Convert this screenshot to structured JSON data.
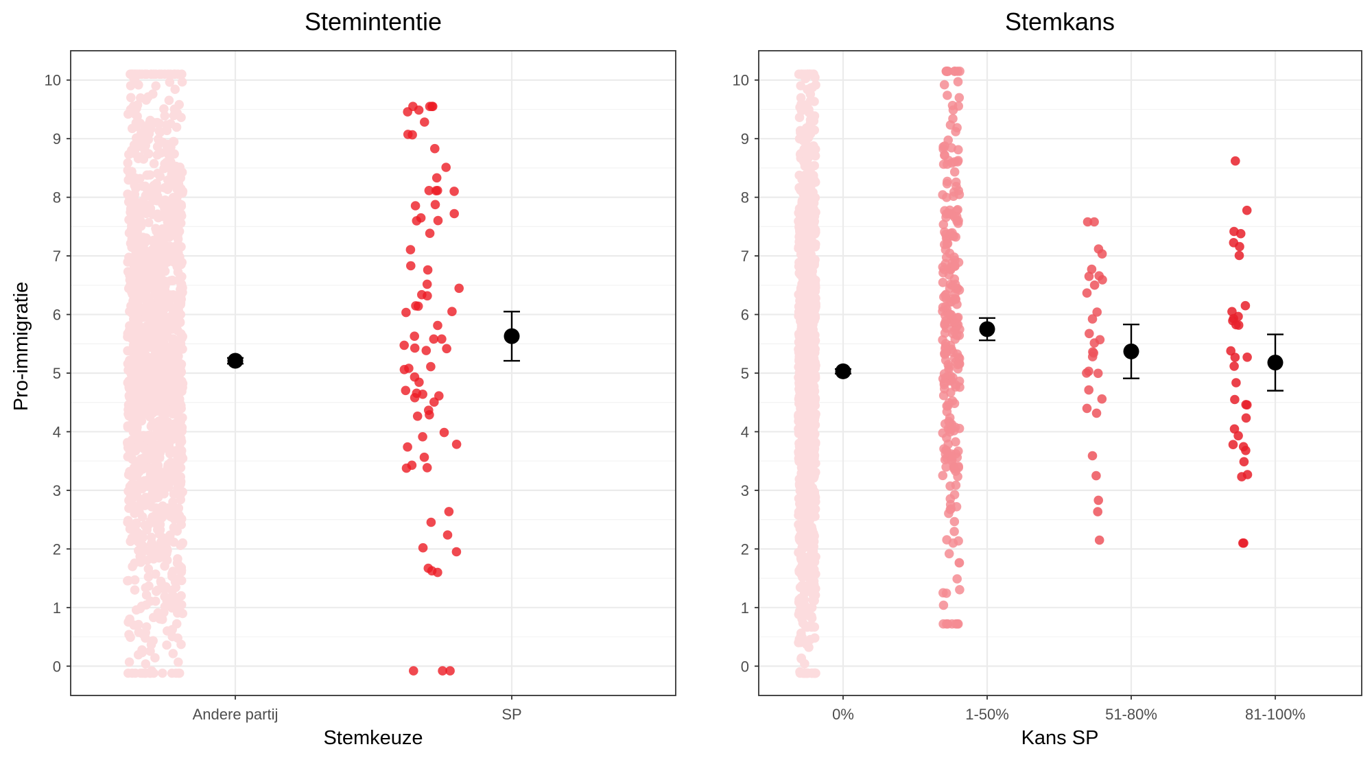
{
  "y_axis_label": "Pro-immigratie",
  "colors": {
    "panel_border": "#333333",
    "grid_major": "#ebebeb",
    "grid_minor": "#f3f3f3",
    "tick_text": "#4d4d4d",
    "mean_point": "#000000"
  },
  "chart_data": [
    {
      "type": "scatter",
      "subtype": "jitter-with-mean-and-error-bars",
      "title": "Stemintentie",
      "xlabel": "Stemkeuze",
      "ylabel": "Pro-immigratie",
      "ylim": [
        -0.5,
        10.5
      ],
      "yticks": [
        "0",
        "1",
        "2",
        "3",
        "4",
        "5",
        "6",
        "7",
        "8",
        "9",
        "10"
      ],
      "grid": true,
      "categories": [
        "Andere partij",
        "SP"
      ],
      "series": [
        {
          "name": "Andere partij",
          "color": "#fcdcde",
          "approx_count": 1400,
          "y_range": [
            -0.12,
            10.1
          ],
          "mean": 5.21,
          "ci": [
            5.16,
            5.26
          ]
        },
        {
          "name": "SP",
          "color": "#ec1c24",
          "alpha": 0.8,
          "approx_count": 75,
          "y_range": [
            -0.08,
            9.55
          ],
          "mean": 5.63,
          "ci": [
            5.21,
            6.05
          ]
        }
      ]
    },
    {
      "type": "scatter",
      "subtype": "jitter-with-mean-and-error-bars",
      "title": "Stemkans",
      "xlabel": "Kans SP",
      "ylabel": "",
      "ylim": [
        -0.5,
        10.5
      ],
      "yticks": [
        "0",
        "1",
        "2",
        "3",
        "4",
        "5",
        "6",
        "7",
        "8",
        "9",
        "10"
      ],
      "grid": true,
      "categories": [
        "0%",
        "1-50%",
        "51-80%",
        "81-100%"
      ],
      "series": [
        {
          "name": "0%",
          "color": "#fcdcde",
          "approx_count": 1100,
          "y_range": [
            -0.12,
            10.1
          ],
          "mean": 5.03,
          "ci": [
            4.99,
            5.07
          ]
        },
        {
          "name": "1-50%",
          "color": "#f58c93",
          "alpha": 0.85,
          "approx_count": 260,
          "y_range": [
            0.72,
            10.15
          ],
          "mean": 5.75,
          "ci": [
            5.56,
            5.94
          ]
        },
        {
          "name": "51-80%",
          "color": "#ed545c",
          "alpha": 0.85,
          "approx_count": 30,
          "y_range": [
            2.15,
            7.58
          ],
          "mean": 5.37,
          "ci": [
            4.91,
            5.83
          ]
        },
        {
          "name": "81-100%",
          "color": "#e8202a",
          "alpha": 0.85,
          "approx_count": 33,
          "y_range": [
            2.1,
            8.62
          ],
          "mean": 5.18,
          "ci": [
            4.7,
            5.66
          ]
        }
      ]
    }
  ]
}
